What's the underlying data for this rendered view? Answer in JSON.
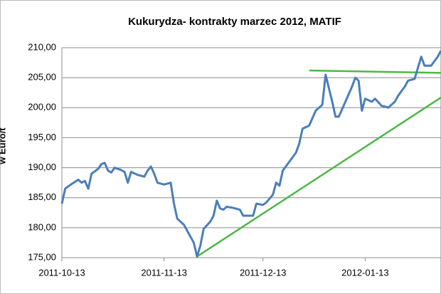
{
  "chart_data": {
    "type": "line",
    "title": "Kukurydza- kontrakty marzec 2012, MATIF",
    "y_label": "w Euro/t",
    "x": [
      "2011-10-13",
      "2011-10-14",
      "2011-10-16",
      "2011-10-18",
      "2011-10-19",
      "2011-10-20",
      "2011-10-21",
      "2011-10-22",
      "2011-10-24",
      "2011-10-25",
      "2011-10-26",
      "2011-10-27",
      "2011-10-28",
      "2011-10-29",
      "2011-10-31",
      "2011-11-01",
      "2011-11-02",
      "2011-11-03",
      "2011-11-05",
      "2011-11-07",
      "2011-11-08",
      "2011-11-09",
      "2011-11-10",
      "2011-11-11",
      "2011-11-13",
      "2011-11-15",
      "2011-11-16",
      "2011-11-17",
      "2011-11-19",
      "2011-11-21",
      "2011-11-22",
      "2011-11-23",
      "2011-11-24",
      "2011-11-25",
      "2011-11-27",
      "2011-11-28",
      "2011-11-29",
      "2011-11-30",
      "2011-12-01",
      "2011-12-02",
      "2011-12-04",
      "2011-12-06",
      "2011-12-07",
      "2011-12-10",
      "2011-12-11",
      "2011-12-13",
      "2011-12-14",
      "2011-12-16",
      "2011-12-17",
      "2011-12-18",
      "2011-12-19",
      "2011-12-21",
      "2011-12-23",
      "2011-12-24",
      "2011-12-25",
      "2011-12-27",
      "2011-12-29",
      "2011-12-31",
      "2012-01-01",
      "2012-01-03",
      "2012-01-04",
      "2012-01-05",
      "2012-01-07",
      "2012-01-09",
      "2012-01-10",
      "2012-01-11",
      "2012-01-12",
      "2012-01-13",
      "2012-01-15",
      "2012-01-16",
      "2012-01-18",
      "2012-01-19",
      "2012-01-20",
      "2012-01-22",
      "2012-01-23",
      "2012-01-25",
      "2012-01-26",
      "2012-01-28",
      "2012-01-30",
      "2012-01-31",
      "2012-02-02",
      "2012-02-04",
      "2012-02-05"
    ],
    "series": [
      {
        "color": "#4a7ebb",
        "values": [
          184.0,
          186.5,
          187.3,
          188.0,
          187.5,
          187.8,
          186.5,
          189.0,
          189.8,
          190.6,
          190.8,
          189.5,
          189.2,
          190.0,
          189.6,
          189.3,
          187.5,
          189.3,
          188.8,
          188.5,
          189.5,
          190.2,
          189.0,
          187.5,
          187.2,
          187.5,
          184.0,
          181.5,
          180.5,
          178.5,
          177.5,
          175.2,
          177.0,
          179.8,
          181.0,
          182.0,
          184.5,
          183.2,
          183.0,
          183.5,
          183.3,
          183.0,
          182.0,
          182.0,
          184.0,
          183.8,
          184.2,
          185.5,
          187.5,
          187.0,
          189.5,
          191.0,
          192.5,
          194.0,
          196.5,
          197.0,
          199.5,
          200.5,
          205.5,
          201.0,
          198.5,
          198.5,
          201.0,
          203.5,
          205.0,
          204.5,
          199.5,
          201.5,
          201.0,
          201.5,
          200.3,
          200.2,
          200.0,
          201.0,
          202.0,
          203.5,
          204.5,
          204.8,
          208.5,
          207.0,
          207.0,
          208.5,
          209.5
        ]
      }
    ],
    "trend_lines": [
      {
        "color": "#4db848",
        "x": [
          "2011-12-27",
          "2012-02-05"
        ],
        "values": [
          206.2,
          205.8
        ]
      },
      {
        "color": "#4db848",
        "x": [
          "2011-11-23",
          "2012-02-05"
        ],
        "values": [
          175.2,
          201.7
        ]
      }
    ],
    "xlim": [
      "2011-10-13",
      "2012-02-05"
    ],
    "xticks": [
      "2011-10-13",
      "2011-11-13",
      "2011-12-13",
      "2012-01-13"
    ],
    "ylim": [
      175,
      210
    ],
    "yticks": [
      {
        "value": 175,
        "label": "175,00"
      },
      {
        "value": 180,
        "label": "180,00"
      },
      {
        "value": 185,
        "label": "185,00"
      },
      {
        "value": 190,
        "label": "190,00"
      },
      {
        "value": 195,
        "label": "195,00"
      },
      {
        "value": 200,
        "label": "200,00"
      },
      {
        "value": 205,
        "label": "205,00"
      },
      {
        "value": 210,
        "label": "210,00"
      }
    ],
    "grid": true
  }
}
